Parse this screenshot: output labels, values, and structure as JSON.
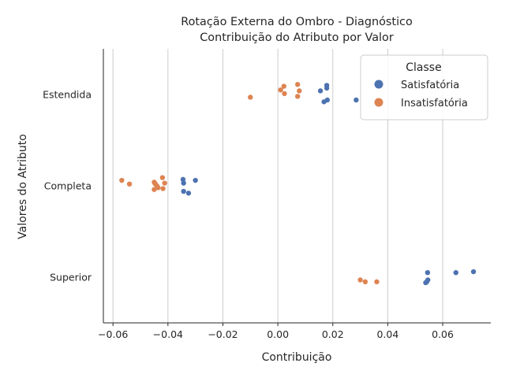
{
  "chart_data": {
    "type": "scatter",
    "title": "Rotação Externa do Ombro - Diagnóstico",
    "subtitle": "Contribuição do Atributo por Valor",
    "xlabel": "Contribuição",
    "ylabel": "Valores do Atributo",
    "xlim": [
      -0.0635,
      0.0775
    ],
    "x_ticks": [
      -0.06,
      -0.04,
      -0.02,
      0.0,
      0.02,
      0.04,
      0.06
    ],
    "x_tick_labels": [
      "−0.06",
      "−0.04",
      "−0.02",
      "0.00",
      "0.02",
      "0.04",
      "0.06"
    ],
    "categories": [
      "Estendida",
      "Completa",
      "Superior"
    ],
    "grid": "vertical",
    "legend": {
      "title": "Classe",
      "placement": "top-right"
    },
    "series": [
      {
        "name": "Satisfatória",
        "color": "#4c72b0",
        "points": [
          {
            "cat": "Estendida",
            "x": 0.0178,
            "jitter": -0.1
          },
          {
            "cat": "Estendida",
            "x": 0.0178,
            "jitter": -0.07
          },
          {
            "cat": "Estendida",
            "x": 0.0155,
            "jitter": -0.04
          },
          {
            "cat": "Estendida",
            "x": 0.0285,
            "jitter": 0.06
          },
          {
            "cat": "Estendida",
            "x": 0.018,
            "jitter": 0.06
          },
          {
            "cat": "Estendida",
            "x": 0.0168,
            "jitter": 0.08
          },
          {
            "cat": "Completa",
            "x": -0.0345,
            "jitter": -0.07
          },
          {
            "cat": "Completa",
            "x": -0.03,
            "jitter": -0.06
          },
          {
            "cat": "Completa",
            "x": -0.0343,
            "jitter": -0.03
          },
          {
            "cat": "Completa",
            "x": -0.0343,
            "jitter": 0.06
          },
          {
            "cat": "Completa",
            "x": -0.0325,
            "jitter": 0.08
          },
          {
            "cat": "Superior",
            "x": 0.0712,
            "jitter": -0.06
          },
          {
            "cat": "Superior",
            "x": 0.0648,
            "jitter": -0.05
          },
          {
            "cat": "Superior",
            "x": 0.0545,
            "jitter": -0.05
          },
          {
            "cat": "Superior",
            "x": 0.0546,
            "jitter": 0.03
          },
          {
            "cat": "Superior",
            "x": 0.0542,
            "jitter": 0.05
          },
          {
            "cat": "Superior",
            "x": 0.0538,
            "jitter": 0.06
          }
        ]
      },
      {
        "name": "Insatisfatória",
        "color": "#dd8452",
        "points": [
          {
            "cat": "Estendida",
            "x": 0.0072,
            "jitter": -0.11
          },
          {
            "cat": "Estendida",
            "x": 0.0022,
            "jitter": -0.09
          },
          {
            "cat": "Estendida",
            "x": 0.001,
            "jitter": -0.05
          },
          {
            "cat": "Estendida",
            "x": 0.0078,
            "jitter": -0.04
          },
          {
            "cat": "Estendida",
            "x": 0.0024,
            "jitter": -0.01
          },
          {
            "cat": "Estendida",
            "x": 0.0072,
            "jitter": 0.02
          },
          {
            "cat": "Estendida",
            "x": -0.01,
            "jitter": 0.03
          },
          {
            "cat": "Completa",
            "x": -0.0568,
            "jitter": -0.06
          },
          {
            "cat": "Completa",
            "x": -0.042,
            "jitter": -0.09
          },
          {
            "cat": "Completa",
            "x": -0.045,
            "jitter": -0.04
          },
          {
            "cat": "Completa",
            "x": -0.0448,
            "jitter": -0.03
          },
          {
            "cat": "Completa",
            "x": -0.0412,
            "jitter": -0.03
          },
          {
            "cat": "Completa",
            "x": -0.0446,
            "jitter": -0.02
          },
          {
            "cat": "Completa",
            "x": -0.054,
            "jitter": -0.02
          },
          {
            "cat": "Completa",
            "x": -0.044,
            "jitter": 0.0
          },
          {
            "cat": "Completa",
            "x": -0.0436,
            "jitter": 0.02
          },
          {
            "cat": "Completa",
            "x": -0.0418,
            "jitter": 0.03
          },
          {
            "cat": "Completa",
            "x": -0.045,
            "jitter": 0.04
          },
          {
            "cat": "Superior",
            "x": 0.03,
            "jitter": 0.03
          },
          {
            "cat": "Superior",
            "x": 0.0318,
            "jitter": 0.05
          },
          {
            "cat": "Superior",
            "x": 0.036,
            "jitter": 0.05
          }
        ]
      }
    ]
  }
}
